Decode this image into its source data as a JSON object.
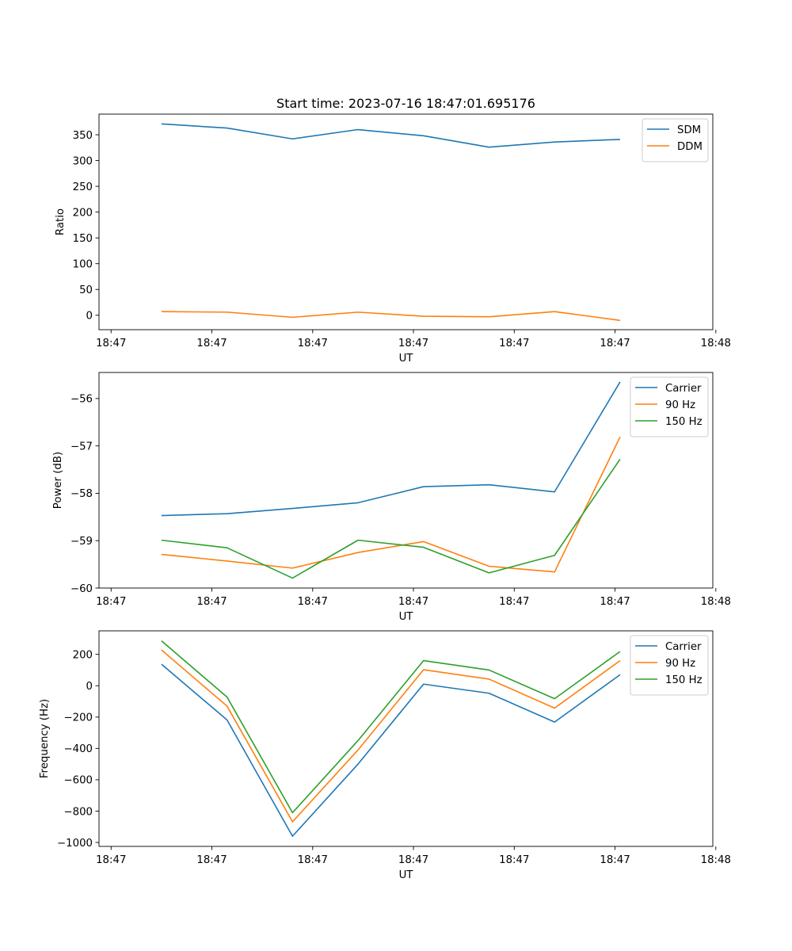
{
  "figure": {
    "title": "Start time: 2023-07-16 18:47:01.695176",
    "xticks": [
      "18:47",
      "18:47",
      "18:47",
      "18:47",
      "18:47",
      "18:47",
      "18:48"
    ]
  },
  "colors": {
    "blue": "#1f77b4",
    "orange": "#ff7f0e",
    "green": "#2ca02c"
  },
  "chart_data": [
    {
      "type": "line",
      "title": "Start time: 2023-07-16 18:47:01.695176",
      "xlabel": "UT",
      "ylabel": "Ratio",
      "x": [
        0.5,
        1.15,
        1.8,
        2.45,
        3.1,
        3.75,
        4.4,
        5.05
      ],
      "xlim": [
        -0.12,
        5.97
      ],
      "ylim": [
        -28,
        390
      ],
      "yticks": [
        0,
        50,
        100,
        150,
        200,
        250,
        300,
        350
      ],
      "legend_position": "upper-right",
      "series": [
        {
          "name": "SDM",
          "color": "#1f77b4",
          "values": [
            371,
            363,
            342,
            360,
            348,
            326,
            336,
            341
          ]
        },
        {
          "name": "DDM",
          "color": "#ff7f0e",
          "values": [
            7,
            6,
            -4,
            6,
            -2,
            -3,
            7,
            -10
          ]
        }
      ]
    },
    {
      "type": "line",
      "xlabel": "UT",
      "ylabel": "Power (dB)",
      "x": [
        0.5,
        1.15,
        1.8,
        2.45,
        3.1,
        3.75,
        4.4,
        5.05
      ],
      "xlim": [
        -0.12,
        5.97
      ],
      "ylim": [
        -60.0,
        -55.45
      ],
      "yticks": [
        -60,
        -59,
        -58,
        -57,
        -56
      ],
      "legend_position": "upper-right",
      "series": [
        {
          "name": "Carrier",
          "color": "#1f77b4",
          "values": [
            -58.47,
            -58.43,
            -58.32,
            -58.2,
            -57.86,
            -57.82,
            -57.97,
            -55.65
          ]
        },
        {
          "name": "90 Hz",
          "color": "#ff7f0e",
          "values": [
            -59.29,
            -59.43,
            -59.58,
            -59.25,
            -59.02,
            -59.54,
            -59.66,
            -56.81
          ]
        },
        {
          "name": "150 Hz",
          "color": "#2ca02c",
          "values": [
            -58.99,
            -59.15,
            -59.79,
            -58.99,
            -59.14,
            -59.68,
            -59.31,
            -57.28
          ]
        }
      ]
    },
    {
      "type": "line",
      "xlabel": "UT",
      "ylabel": "Frequency (Hz)",
      "x": [
        0.5,
        1.15,
        1.8,
        2.45,
        3.1,
        3.75,
        4.4,
        5.05
      ],
      "xlim": [
        -0.12,
        5.97
      ],
      "ylim": [
        -1025,
        350
      ],
      "yticks": [
        -1000,
        -800,
        -600,
        -400,
        -200,
        0,
        200
      ],
      "legend_position": "upper-right",
      "series": [
        {
          "name": "Carrier",
          "color": "#1f77b4",
          "values": [
            137,
            -218,
            -960,
            -500,
            10,
            -48,
            -232,
            70
          ]
        },
        {
          "name": "90 Hz",
          "color": "#ff7f0e",
          "values": [
            228,
            -130,
            -868,
            -410,
            102,
            42,
            -143,
            160
          ]
        },
        {
          "name": "150 Hz",
          "color": "#2ca02c",
          "values": [
            286,
            -72,
            -810,
            -350,
            160,
            100,
            -83,
            218
          ]
        }
      ]
    }
  ]
}
